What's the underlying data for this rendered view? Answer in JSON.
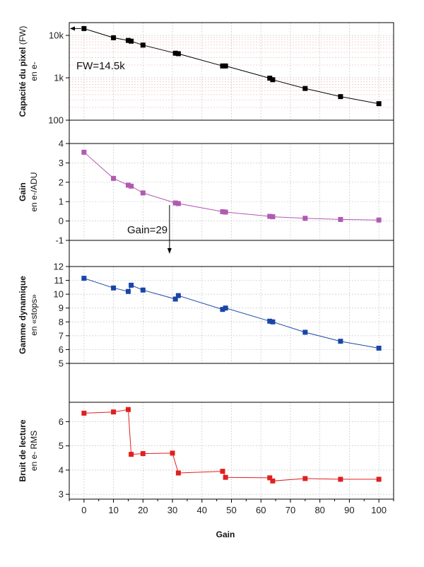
{
  "chart_data": [
    {
      "type": "line",
      "ylabel": "Capacité du pixel",
      "ylabel_paren": "(FW)",
      "ylabel_unit": "en e-",
      "yscale": "log",
      "ylim": [
        100,
        20000
      ],
      "yticks": [
        100,
        1000,
        10000
      ],
      "yticklabels": [
        "100",
        "1k",
        "10k"
      ],
      "color": "#000000",
      "x": [
        0,
        10,
        15,
        16,
        20,
        31,
        32,
        47,
        48,
        63,
        64,
        75,
        87,
        100
      ],
      "values": [
        14500,
        8800,
        7600,
        7300,
        5900,
        3800,
        3700,
        1900,
        1900,
        980,
        900,
        560,
        360,
        245
      ],
      "annotation": "FW=14.5k"
    },
    {
      "type": "line",
      "ylabel": "Gain",
      "ylabel_unit": "en e-/ADU",
      "ylim": [
        -1,
        4
      ],
      "yticks": [
        -1,
        0,
        1,
        2,
        3,
        4
      ],
      "yticklabels": [
        "-1",
        "0",
        "1",
        "2",
        "3",
        "4"
      ],
      "color": "#b15ab1",
      "x": [
        0,
        10,
        15,
        16,
        20,
        31,
        32,
        47,
        48,
        63,
        64,
        75,
        87,
        100
      ],
      "values": [
        3.55,
        2.2,
        1.85,
        1.8,
        1.45,
        0.93,
        0.9,
        0.48,
        0.46,
        0.24,
        0.22,
        0.14,
        0.08,
        0.05
      ],
      "annotation": "Gain=29"
    },
    {
      "type": "line",
      "ylabel": "Gamme dynamique",
      "ylabel_unit": "en «stops»",
      "ylim": [
        5,
        12
      ],
      "yticks": [
        5,
        6,
        7,
        8,
        9,
        10,
        11,
        12
      ],
      "yticklabels": [
        "5",
        "6",
        "7",
        "8",
        "9",
        "10",
        "11",
        "12"
      ],
      "color": "#1a45a8",
      "x": [
        0,
        10,
        15,
        16,
        20,
        31,
        32,
        47,
        48,
        63,
        64,
        75,
        87,
        100
      ],
      "values": [
        11.15,
        10.45,
        10.2,
        10.65,
        10.3,
        9.65,
        9.9,
        8.9,
        9.0,
        8.05,
        8.0,
        7.25,
        6.6,
        6.1
      ]
    },
    {
      "type": "line",
      "ylabel": "Bruit de lecture",
      "ylabel_unit": "en e- RMS",
      "ylim": [
        2.8,
        6.8
      ],
      "yticks": [
        3,
        4,
        5,
        6
      ],
      "yticklabels": [
        "3",
        "4",
        "5",
        "6"
      ],
      "color": "#e02020",
      "x": [
        0,
        10,
        15,
        16,
        20,
        30,
        32,
        47,
        48,
        63,
        64,
        75,
        87,
        100
      ],
      "values": [
        6.35,
        6.4,
        6.5,
        4.65,
        4.68,
        4.7,
        3.88,
        3.95,
        3.7,
        3.68,
        3.55,
        3.65,
        3.62,
        3.62
      ]
    }
  ],
  "x_axis": {
    "label": "Gain",
    "xlim": [
      -5,
      105
    ],
    "ticks": [
      0,
      10,
      20,
      30,
      40,
      50,
      60,
      70,
      80,
      90,
      100
    ]
  }
}
